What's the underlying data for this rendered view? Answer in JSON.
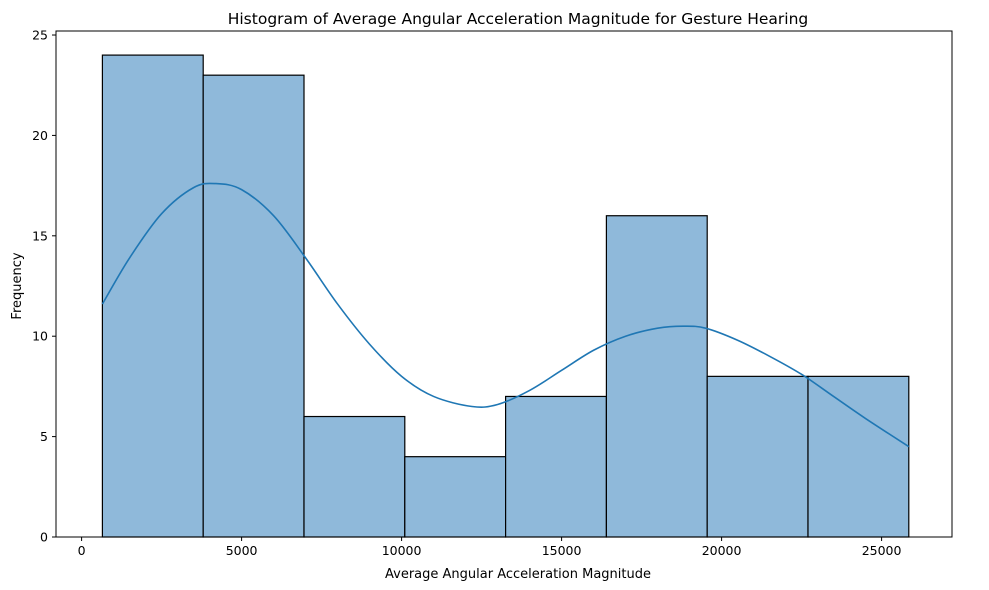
{
  "chart_data": {
    "type": "bar",
    "subtype": "histogram",
    "title": "Histogram of Average Angular Acceleration Magnitude for Gesture Hearing",
    "xlabel": "Average Angular Acceleration Magnitude",
    "ylabel": "Frequency",
    "xlim": [
      -800,
      27200
    ],
    "ylim": [
      0,
      25.2
    ],
    "xticks": [
      0,
      5000,
      10000,
      15000,
      20000,
      25000
    ],
    "yticks": [
      0,
      5,
      10,
      15,
      20,
      25
    ],
    "bins": [
      {
        "x0": 650,
        "x1": 3800,
        "count": 24
      },
      {
        "x0": 3800,
        "x1": 6950,
        "count": 23
      },
      {
        "x0": 6950,
        "x1": 10100,
        "count": 6
      },
      {
        "x0": 10100,
        "x1": 13250,
        "count": 4
      },
      {
        "x0": 13250,
        "x1": 16400,
        "count": 7
      },
      {
        "x0": 16400,
        "x1": 19550,
        "count": 16
      },
      {
        "x0": 19550,
        "x1": 22700,
        "count": 8
      },
      {
        "x0": 22700,
        "x1": 25850,
        "count": 8
      }
    ],
    "kde": {
      "x": [
        650,
        1500,
        2500,
        3500,
        4200,
        5000,
        6000,
        7000,
        8000,
        9000,
        10000,
        11000,
        12200,
        13000,
        14000,
        15000,
        16000,
        17000,
        18000,
        18800,
        19500,
        20500,
        21500,
        22500,
        23500,
        24500,
        25850
      ],
      "y": [
        11.6,
        13.9,
        16.1,
        17.4,
        17.6,
        17.3,
        16.0,
        13.9,
        11.6,
        9.6,
        8.0,
        7.0,
        6.5,
        6.6,
        7.3,
        8.3,
        9.3,
        10.0,
        10.4,
        10.5,
        10.4,
        9.8,
        9.0,
        8.1,
        7.0,
        5.9,
        4.5
      ]
    },
    "colors": {
      "bar_fill": "#8fb9da",
      "bar_edge": "#000000",
      "kde_line": "#1f77b4"
    },
    "grid": false,
    "legend": "none"
  }
}
